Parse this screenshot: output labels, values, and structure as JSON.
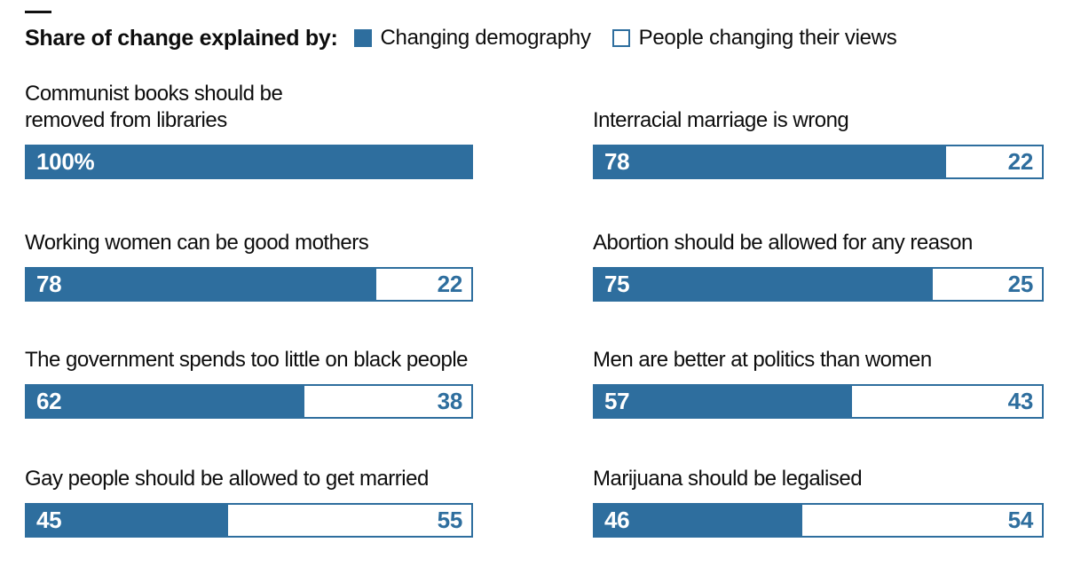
{
  "header": {
    "title": "Share of change explained by:",
    "legend": [
      {
        "label": "Changing demography",
        "swatch": "filled-square"
      },
      {
        "label": "People changing their views",
        "swatch": "outline-square"
      }
    ]
  },
  "colors": {
    "bar_blue": "#2e6e9e",
    "text": "#0d0d0d",
    "background": "#ffffff"
  },
  "chart_data": {
    "type": "bar",
    "subtype": "horizontal-stacked-100-percent",
    "unit": "percent",
    "xlim": [
      0,
      100
    ],
    "grid": false,
    "legend_position": "top",
    "series_names": [
      "Changing demography",
      "People changing their views"
    ],
    "items": [
      {
        "label": "Communist books should be\nremoved from libraries",
        "demography": 100,
        "views": null,
        "demography_text": "100%",
        "views_text": null
      },
      {
        "label": "Interracial marriage is wrong",
        "demography": 78,
        "views": 22,
        "demography_text": "78",
        "views_text": "22"
      },
      {
        "label": "Working women can be good mothers",
        "demography": 78,
        "views": 22,
        "demography_text": "78",
        "views_text": "22"
      },
      {
        "label": "Abortion should be allowed for any reason",
        "demography": 75,
        "views": 25,
        "demography_text": "75",
        "views_text": "25"
      },
      {
        "label": "The government spends too little on black people",
        "demography": 62,
        "views": 38,
        "demography_text": "62",
        "views_text": "38"
      },
      {
        "label": "Men are better at politics than women",
        "demography": 57,
        "views": 43,
        "demography_text": "57",
        "views_text": "43"
      },
      {
        "label": "Gay people should be allowed to get married",
        "demography": 45,
        "views": 55,
        "demography_text": "45",
        "views_text": "55"
      },
      {
        "label": "Marijuana should be legalised",
        "demography": 46,
        "views": 54,
        "demography_text": "46",
        "views_text": "54"
      }
    ]
  }
}
